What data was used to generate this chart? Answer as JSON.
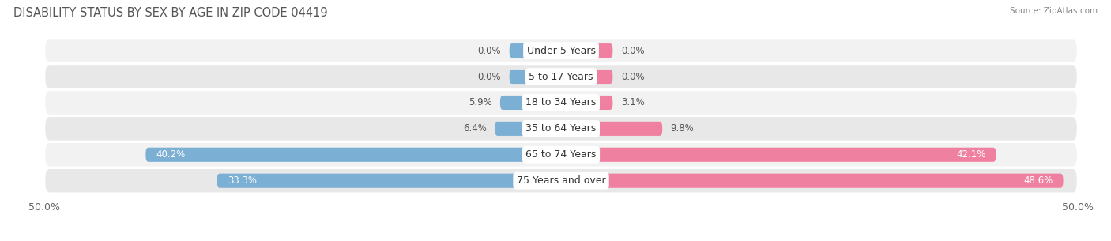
{
  "title": "DISABILITY STATUS BY SEX BY AGE IN ZIP CODE 04419",
  "source": "Source: ZipAtlas.com",
  "categories": [
    "Under 5 Years",
    "5 to 17 Years",
    "18 to 34 Years",
    "35 to 64 Years",
    "65 to 74 Years",
    "75 Years and over"
  ],
  "male_values": [
    0.0,
    0.0,
    5.9,
    6.4,
    40.2,
    33.3
  ],
  "female_values": [
    0.0,
    0.0,
    3.1,
    9.8,
    42.1,
    48.6
  ],
  "male_color": "#7bafd4",
  "female_color": "#f080a0",
  "row_bg_color_odd": "#f2f2f2",
  "row_bg_color_even": "#e8e8e8",
  "xlim": 50.0,
  "axis_label_left": "50.0%",
  "axis_label_right": "50.0%",
  "bar_height": 0.55,
  "min_bar_value": 5.0,
  "title_fontsize": 10.5,
  "label_fontsize": 8.5,
  "category_fontsize": 9,
  "axis_fontsize": 9,
  "inside_label_threshold": 10.0
}
